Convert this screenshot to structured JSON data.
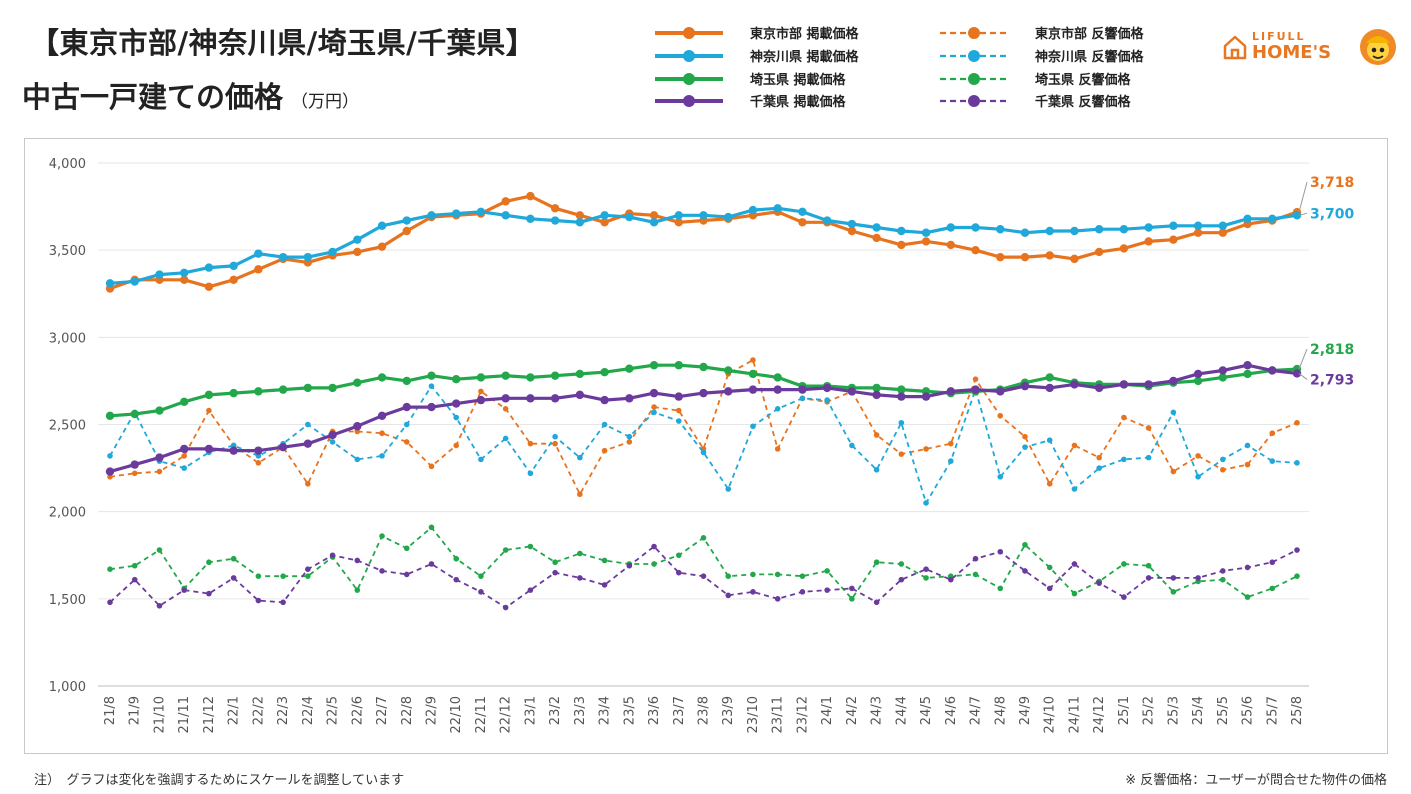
{
  "header": {
    "title_line1": "【東京市部/神奈川県/埼玉県/千葉県】",
    "title_line2": "中古一戸建ての価格",
    "unit": "（万円）"
  },
  "brand": {
    "line1": "LIFULL",
    "line2": "HOME'S",
    "icon": "house-outline-icon",
    "mascot": "mascot-face-icon"
  },
  "notes": {
    "left": "注）　グラフは変化を強調するためにスケールを調整しています",
    "right": "※ 反響価格：ユーザーが問合せた物件の価格"
  },
  "chart_data": {
    "type": "line",
    "ylim": [
      1000,
      4000
    ],
    "yticks": [
      1000,
      1500,
      2000,
      2500,
      3000,
      3500,
      4000
    ],
    "ytick_labels": [
      "1,000",
      "1,500",
      "2,000",
      "2,500",
      "3,000",
      "3,500",
      "4,000"
    ],
    "grid": true,
    "legend_position": "top",
    "categories": [
      "21/8",
      "21/9",
      "21/10",
      "21/11",
      "21/12",
      "22/1",
      "22/2",
      "22/3",
      "22/4",
      "22/5",
      "22/6",
      "22/7",
      "22/8",
      "22/9",
      "22/10",
      "22/11",
      "22/12",
      "23/1",
      "23/2",
      "23/3",
      "23/4",
      "23/5",
      "23/6",
      "23/7",
      "23/8",
      "23/9",
      "23/10",
      "23/11",
      "23/12",
      "24/1",
      "24/2",
      "24/3",
      "24/4",
      "24/5",
      "24/6",
      "24/7",
      "24/8",
      "24/9",
      "24/10",
      "24/11",
      "24/12",
      "25/1",
      "25/2",
      "25/3",
      "25/4",
      "25/5",
      "25/6",
      "25/7",
      "25/8"
    ],
    "series": [
      {
        "name": "東京市部 掲載価格",
        "color": "#e8731e",
        "style": "solid",
        "values": [
          3280,
          3330,
          3330,
          3330,
          3290,
          3330,
          3390,
          3450,
          3430,
          3470,
          3490,
          3520,
          3610,
          3690,
          3700,
          3710,
          3780,
          3810,
          3740,
          3700,
          3660,
          3710,
          3700,
          3660,
          3670,
          3680,
          3700,
          3720,
          3660,
          3660,
          3610,
          3570,
          3530,
          3550,
          3530,
          3500,
          3460,
          3460,
          3470,
          3450,
          3490,
          3510,
          3550,
          3560,
          3600,
          3600,
          3650,
          3670,
          3718
        ],
        "end_label": "3,718"
      },
      {
        "name": "神奈川県 掲載価格",
        "color": "#1fa8d9",
        "style": "solid",
        "values": [
          3310,
          3320,
          3360,
          3370,
          3400,
          3410,
          3480,
          3460,
          3460,
          3490,
          3560,
          3640,
          3670,
          3700,
          3710,
          3720,
          3700,
          3680,
          3670,
          3660,
          3700,
          3690,
          3660,
          3700,
          3700,
          3690,
          3730,
          3740,
          3720,
          3670,
          3650,
          3630,
          3610,
          3600,
          3630,
          3630,
          3620,
          3600,
          3610,
          3610,
          3620,
          3620,
          3630,
          3640,
          3640,
          3640,
          3680,
          3680,
          3700
        ],
        "end_label": "3,700"
      },
      {
        "name": "埼玉県 掲載価格",
        "color": "#22a84a",
        "style": "solid",
        "values": [
          2550,
          2560,
          2580,
          2630,
          2670,
          2680,
          2690,
          2700,
          2710,
          2710,
          2740,
          2770,
          2750,
          2780,
          2760,
          2770,
          2780,
          2770,
          2780,
          2790,
          2800,
          2820,
          2840,
          2840,
          2830,
          2810,
          2790,
          2770,
          2720,
          2720,
          2710,
          2710,
          2700,
          2690,
          2680,
          2690,
          2700,
          2740,
          2770,
          2740,
          2730,
          2730,
          2720,
          2740,
          2750,
          2770,
          2790,
          2810,
          2818
        ],
        "end_label": "2,818"
      },
      {
        "name": "千葉県 掲載価格",
        "color": "#6a3b9c",
        "style": "solid",
        "values": [
          2230,
          2270,
          2310,
          2360,
          2360,
          2350,
          2350,
          2370,
          2390,
          2440,
          2490,
          2550,
          2600,
          2600,
          2620,
          2640,
          2650,
          2650,
          2650,
          2670,
          2640,
          2650,
          2680,
          2660,
          2680,
          2690,
          2700,
          2700,
          2700,
          2710,
          2690,
          2670,
          2660,
          2660,
          2690,
          2700,
          2690,
          2720,
          2710,
          2730,
          2710,
          2730,
          2730,
          2750,
          2790,
          2810,
          2840,
          2810,
          2793
        ],
        "end_label": "2,793"
      },
      {
        "name": "東京市部 反響価格",
        "color": "#e8731e",
        "style": "dashed",
        "values": [
          2200,
          2220,
          2230,
          2320,
          2580,
          2380,
          2280,
          2370,
          2160,
          2460,
          2460,
          2450,
          2400,
          2260,
          2380,
          2690,
          2590,
          2390,
          2390,
          2100,
          2350,
          2400,
          2600,
          2580,
          2360,
          2790,
          2870,
          2360,
          2650,
          2630,
          2690,
          2440,
          2330,
          2360,
          2390,
          2760,
          2550,
          2430,
          2160,
          2380,
          2310,
          2540,
          2480,
          2230,
          2320,
          2240,
          2270,
          2450,
          2510
        ]
      },
      {
        "name": "神奈川県 反響価格",
        "color": "#1fa8d9",
        "style": "dashed",
        "values": [
          2320,
          2570,
          2290,
          2250,
          2340,
          2380,
          2320,
          2390,
          2500,
          2400,
          2300,
          2320,
          2500,
          2720,
          2540,
          2300,
          2420,
          2220,
          2430,
          2310,
          2500,
          2430,
          2570,
          2520,
          2340,
          2130,
          2490,
          2590,
          2650,
          2640,
          2380,
          2240,
          2510,
          2050,
          2290,
          2700,
          2200,
          2370,
          2410,
          2130,
          2250,
          2300,
          2310,
          2570,
          2200,
          2300,
          2380,
          2290,
          2280
        ]
      },
      {
        "name": "埼玉県 反響価格",
        "color": "#22a84a",
        "style": "dashed",
        "values": [
          1670,
          1690,
          1780,
          1560,
          1710,
          1730,
          1630,
          1630,
          1630,
          1740,
          1550,
          1860,
          1790,
          1910,
          1730,
          1630,
          1780,
          1800,
          1710,
          1760,
          1720,
          1700,
          1700,
          1750,
          1850,
          1630,
          1640,
          1640,
          1630,
          1660,
          1500,
          1710,
          1700,
          1620,
          1630,
          1640,
          1560,
          1810,
          1680,
          1530,
          1600,
          1700,
          1690,
          1540,
          1600,
          1610,
          1510,
          1560,
          1630
        ]
      },
      {
        "name": "千葉県 反響価格",
        "color": "#6a3b9c",
        "style": "dashed",
        "values": [
          1480,
          1610,
          1460,
          1550,
          1530,
          1620,
          1490,
          1480,
          1670,
          1750,
          1720,
          1660,
          1640,
          1700,
          1610,
          1540,
          1450,
          1550,
          1650,
          1620,
          1580,
          1690,
          1800,
          1650,
          1630,
          1520,
          1540,
          1500,
          1540,
          1550,
          1560,
          1480,
          1610,
          1670,
          1610,
          1730,
          1770,
          1660,
          1560,
          1700,
          1590,
          1510,
          1620,
          1620,
          1620,
          1660,
          1680,
          1710,
          1780
        ]
      }
    ]
  }
}
